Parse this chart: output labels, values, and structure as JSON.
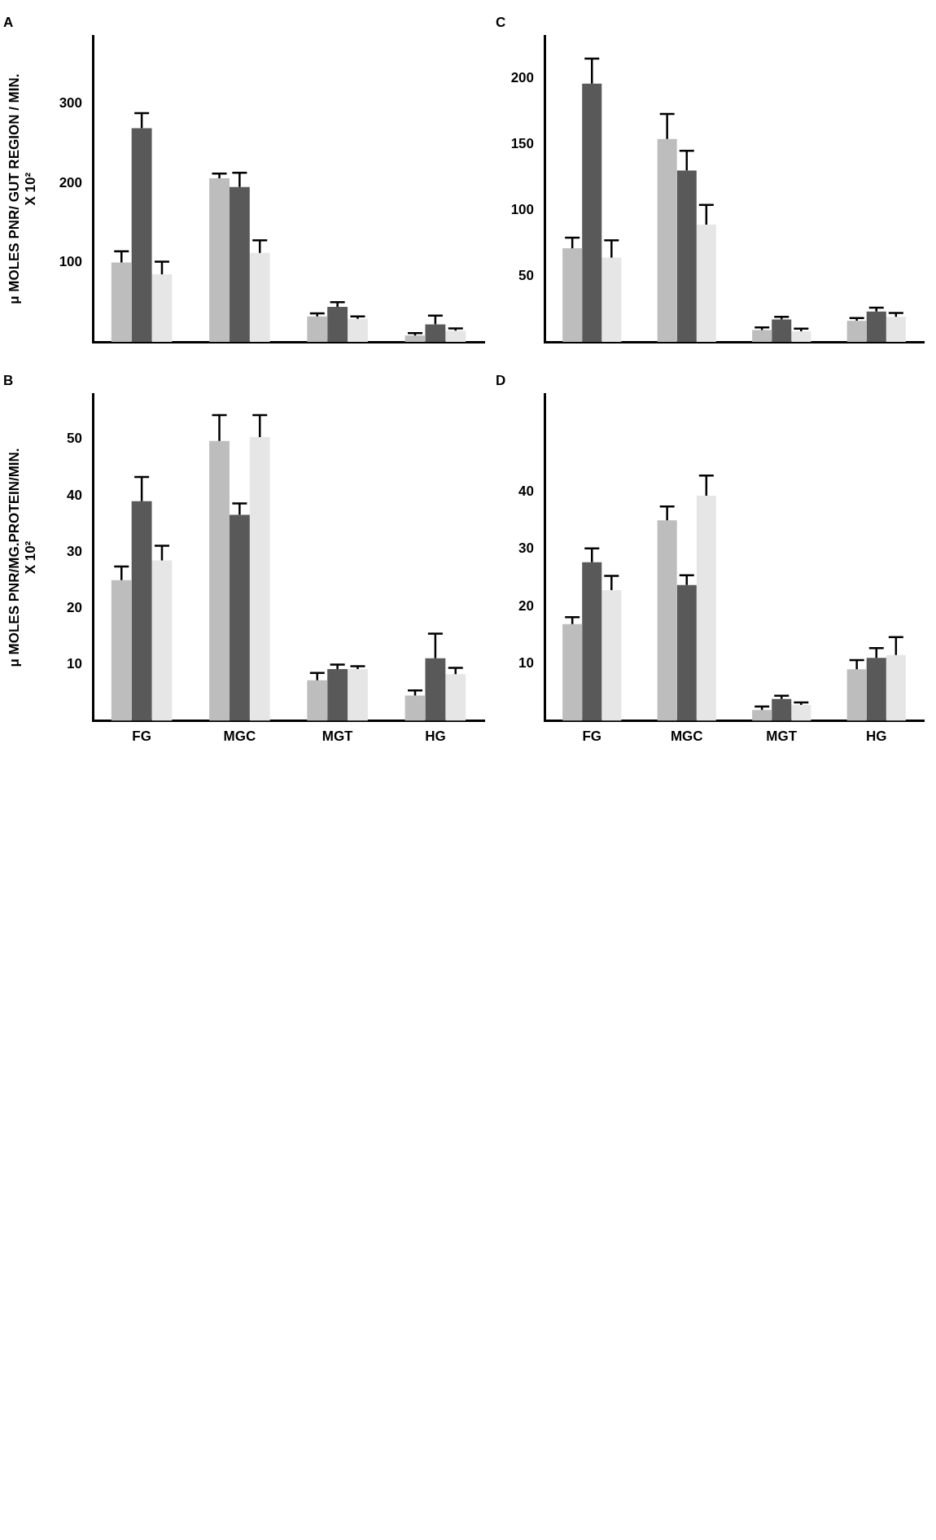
{
  "chart_data": [
    {
      "type": "bar",
      "title": "A",
      "ylabel": "μ MOLES PNR/ GUT REGION / MIN.\nX 10²",
      "categories": [
        null,
        null,
        null,
        null
      ],
      "ylim": [
        0,
        385
      ],
      "yticks": [
        100,
        200,
        300
      ],
      "tick_labels": "y",
      "series": [
        {
          "color": "#bdbdbd",
          "values": [
            100,
            206,
            32,
            8
          ],
          "errors": [
            [
              100,
              114
            ],
            [
              206,
              212
            ],
            [
              32,
              36
            ],
            [
              8,
              11
            ]
          ]
        },
        {
          "color": "#595959",
          "values": [
            269,
            195,
            44,
            22
          ],
          "errors": [
            [
              269,
              288
            ],
            [
              195,
              213
            ],
            [
              44,
              50
            ],
            [
              22,
              33
            ]
          ]
        },
        {
          "color": "#e6e6e6",
          "values": [
            85,
            112,
            29,
            14
          ],
          "errors": [
            [
              85,
              101
            ],
            [
              112,
              128
            ],
            [
              29,
              32
            ],
            [
              14,
              17
            ]
          ]
        }
      ]
    },
    {
      "type": "bar",
      "title": "C",
      "categories": [
        null,
        null,
        null,
        null
      ],
      "ylim": [
        0,
        232
      ],
      "yticks": [
        50,
        100,
        150,
        200
      ],
      "tick_labels": "y",
      "series": [
        {
          "color": "#bdbdbd",
          "values": [
            71,
            154,
            9,
            16
          ],
          "errors": [
            [
              71,
              79
            ],
            [
              154,
              173
            ],
            [
              9,
              11
            ],
            [
              16,
              18
            ]
          ]
        },
        {
          "color": "#595959",
          "values": [
            196,
            130,
            17,
            23
          ],
          "errors": [
            [
              196,
              215
            ],
            [
              130,
              145
            ],
            [
              17,
              19
            ],
            [
              23,
              26
            ]
          ]
        },
        {
          "color": "#e6e6e6",
          "values": [
            64,
            89,
            8,
            19
          ],
          "errors": [
            [
              64,
              77
            ],
            [
              89,
              104
            ],
            [
              8,
              10
            ],
            [
              19,
              22
            ]
          ]
        }
      ]
    },
    {
      "type": "bar",
      "title": "B",
      "ylabel": "μ MOLES PNR/MG.PROTEIN/MIN.\nX 10²",
      "categories": [
        "FG",
        "MGC",
        "MGT",
        "HG"
      ],
      "ylim": [
        0,
        58
      ],
      "yticks": [
        10,
        20,
        30,
        40,
        50
      ],
      "series": [
        {
          "color": "#bdbdbd",
          "values": [
            25,
            49.7,
            7.2,
            4.5
          ],
          "errors": [
            [
              25,
              27.4
            ],
            [
              49.7,
              54.3
            ],
            [
              7.2,
              8.5
            ],
            [
              4.5,
              5.4
            ]
          ]
        },
        {
          "color": "#595959",
          "values": [
            39,
            36.6,
            9.2,
            11.1
          ],
          "errors": [
            [
              39,
              43.3
            ],
            [
              36.6,
              38.6
            ],
            [
              9.2,
              10
            ],
            [
              11.1,
              15.5
            ]
          ]
        },
        {
          "color": "#e6e6e6",
          "values": [
            28.5,
            50.4,
            9.2,
            8.3
          ],
          "errors": [
            [
              28.5,
              31.1
            ],
            [
              50.4,
              54.3
            ],
            [
              9.2,
              9.7
            ],
            [
              8.3,
              9.4
            ]
          ]
        }
      ]
    },
    {
      "type": "bar",
      "title": "D",
      "categories": [
        "FG",
        "MGC",
        "MGT",
        "HG"
      ],
      "ylim": [
        0,
        57
      ],
      "yticks": [
        10,
        20,
        30,
        40
      ],
      "series": [
        {
          "color": "#bdbdbd",
          "values": [
            16.9,
            35,
            1.9,
            9
          ],
          "errors": [
            [
              16.9,
              18.1
            ],
            [
              35,
              37.4
            ],
            [
              1.9,
              2.5
            ],
            [
              9,
              10.6
            ]
          ]
        },
        {
          "color": "#595959",
          "values": [
            27.7,
            23.7,
            3.8,
            11
          ],
          "errors": [
            [
              27.7,
              30.1
            ],
            [
              23.7,
              25.4
            ],
            [
              3.8,
              4.4
            ],
            [
              11,
              12.7
            ]
          ]
        },
        {
          "color": "#e6e6e6",
          "values": [
            22.8,
            39.3,
            2.8,
            11.5
          ],
          "errors": [
            [
              22.8,
              25.3
            ],
            [
              39.3,
              42.8
            ],
            [
              2.8,
              3.2
            ],
            [
              11.5,
              14.6
            ]
          ]
        }
      ]
    }
  ]
}
